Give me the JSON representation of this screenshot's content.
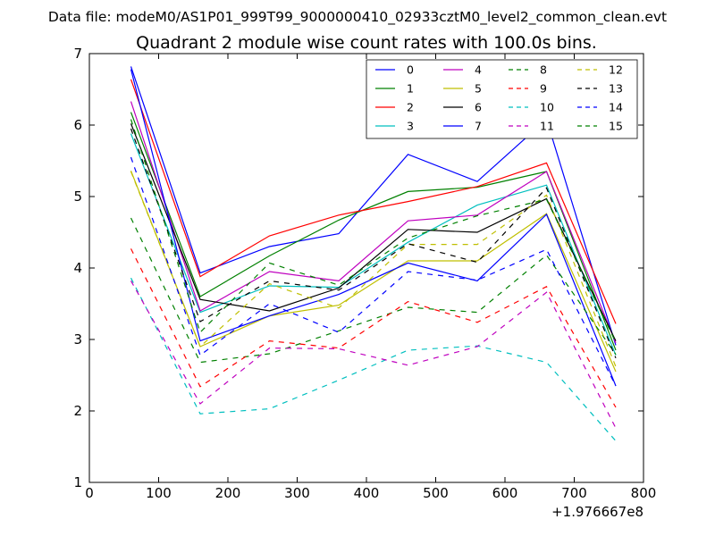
{
  "chart_data": {
    "type": "line",
    "suptitle": "Data file: modeM0/AS1P01_999T99_9000000410_02933cztM0_level2_common_clean.evt",
    "title": "Quadrant 2 module wise count rates with 100.0s bins.",
    "xlabel": "",
    "ylabel": "",
    "x_offset_label": "+1.976667e8",
    "xlim": [
      0,
      800
    ],
    "ylim": [
      1,
      7
    ],
    "x_ticks": [
      "0",
      "100",
      "200",
      "300",
      "400",
      "500",
      "600",
      "700",
      "800"
    ],
    "y_ticks": [
      "1",
      "2",
      "3",
      "4",
      "5",
      "6",
      "7"
    ],
    "grid": false,
    "legend_position": "top-right",
    "x": [
      60,
      160,
      260,
      360,
      460,
      560,
      660,
      760
    ],
    "series": [
      {
        "name": "0",
        "color": "#0000ff",
        "style": "solid",
        "values": [
          6.82,
          3.93,
          4.3,
          4.48,
          5.59,
          5.21,
          6.08,
          2.92
        ]
      },
      {
        "name": "1",
        "color": "#008000",
        "style": "solid",
        "values": [
          6.18,
          3.6,
          4.17,
          4.67,
          5.07,
          5.13,
          5.35,
          2.85
        ]
      },
      {
        "name": "2",
        "color": "#ff0000",
        "style": "solid",
        "values": [
          6.64,
          3.88,
          4.45,
          4.74,
          4.93,
          5.14,
          5.47,
          3.22
        ]
      },
      {
        "name": "3",
        "color": "#00bfbf",
        "style": "solid",
        "values": [
          5.88,
          3.38,
          3.75,
          3.73,
          4.36,
          4.88,
          5.16,
          2.78
        ]
      },
      {
        "name": "4",
        "color": "#bf00bf",
        "style": "solid",
        "values": [
          6.33,
          3.4,
          3.95,
          3.82,
          4.66,
          4.74,
          5.35,
          2.95
        ]
      },
      {
        "name": "5",
        "color": "#bfbf00",
        "style": "solid",
        "values": [
          5.36,
          2.9,
          3.33,
          3.48,
          4.1,
          4.1,
          4.76,
          2.55
        ]
      },
      {
        "name": "6",
        "color": "#000000",
        "style": "solid",
        "values": [
          6.02,
          3.56,
          3.4,
          3.72,
          4.54,
          4.5,
          4.97,
          2.98
        ]
      },
      {
        "name": "7",
        "color": "#0000ff",
        "style": "solid",
        "values": [
          6.78,
          2.98,
          3.33,
          3.63,
          4.07,
          3.82,
          4.75,
          2.35
        ]
      },
      {
        "name": "8",
        "color": "#008000",
        "style": "dashed",
        "values": [
          4.7,
          2.68,
          2.8,
          3.12,
          3.45,
          3.38,
          4.18,
          2.79
        ]
      },
      {
        "name": "9",
        "color": "#ff0000",
        "style": "dashed",
        "values": [
          4.27,
          2.34,
          2.98,
          2.88,
          3.53,
          3.24,
          3.74,
          2.05
        ]
      },
      {
        "name": "10",
        "color": "#00bfbf",
        "style": "dashed",
        "values": [
          3.86,
          1.96,
          2.03,
          2.43,
          2.85,
          2.91,
          2.68,
          1.58
        ]
      },
      {
        "name": "11",
        "color": "#bf00bf",
        "style": "dashed",
        "values": [
          3.82,
          2.1,
          2.88,
          2.87,
          2.64,
          2.9,
          3.66,
          1.76
        ]
      },
      {
        "name": "12",
        "color": "#bfbf00",
        "style": "dashed",
        "values": [
          5.35,
          2.9,
          3.78,
          3.44,
          4.33,
          4.33,
          5.02,
          2.62
        ]
      },
      {
        "name": "13",
        "color": "#000000",
        "style": "dashed",
        "values": [
          5.95,
          3.25,
          3.82,
          3.69,
          4.34,
          4.08,
          5.12,
          2.74
        ]
      },
      {
        "name": "14",
        "color": "#0000ff",
        "style": "dashed",
        "values": [
          5.55,
          2.78,
          3.5,
          3.1,
          3.95,
          3.83,
          4.26,
          2.35
        ]
      },
      {
        "name": "15",
        "color": "#008000",
        "style": "dashed",
        "values": [
          6.08,
          3.1,
          4.07,
          3.76,
          4.42,
          4.73,
          4.96,
          2.96
        ]
      }
    ]
  }
}
